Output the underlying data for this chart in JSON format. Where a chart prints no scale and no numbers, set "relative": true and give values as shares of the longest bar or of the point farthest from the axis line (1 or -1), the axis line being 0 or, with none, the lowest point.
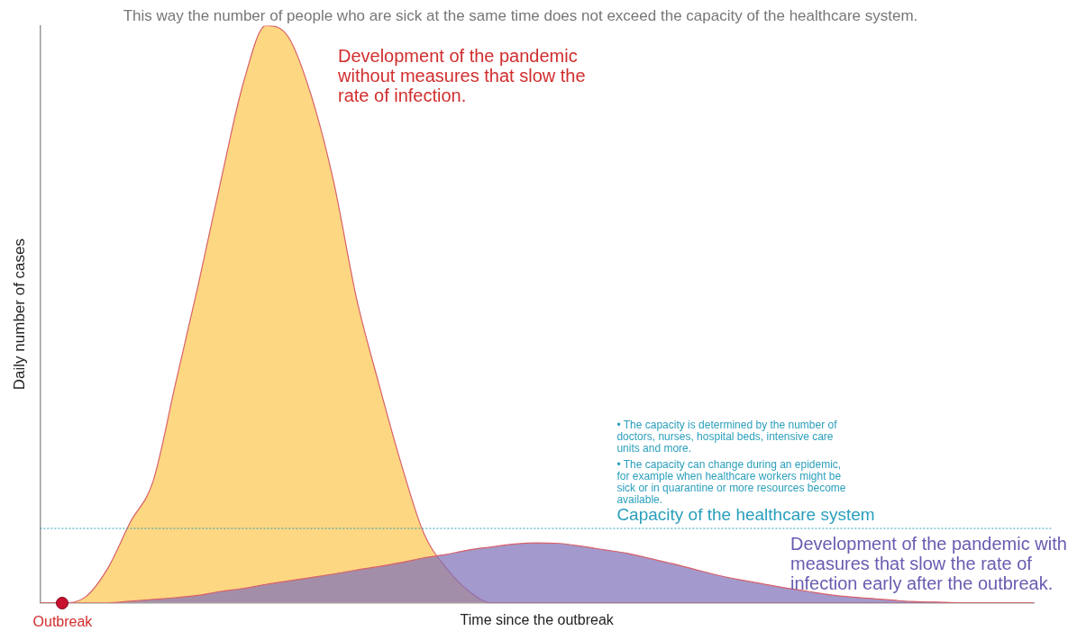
{
  "chart_data": {
    "type": "area",
    "subtitle": "This way the number of people who are sick at the same time does not exceed the capacity of the healthcare system.",
    "xlabel": "Time since the outbreak",
    "ylabel": "Daily number of cases",
    "relative": true,
    "categories": [
      null,
      null,
      null,
      null,
      null,
      null,
      null,
      null,
      null,
      null,
      null,
      null,
      null,
      null,
      null,
      null,
      null,
      null,
      null,
      null,
      null,
      null,
      null,
      null,
      null,
      null,
      null,
      null,
      null,
      null,
      null,
      null,
      null,
      null,
      null,
      null,
      null,
      null,
      null,
      null,
      null,
      null,
      null,
      null,
      null
    ],
    "series": [
      {
        "name": "Development of the pandemic without measures that slow the rate of infection.",
        "color": "#fdd47a",
        "values": [
          0,
          0,
          0.01,
          0.06,
          0.14,
          0.21,
          0.38,
          0.55,
          0.73,
          0.9,
          1,
          0.98,
          0.88,
          0.73,
          0.53,
          0.38,
          0.24,
          0.12,
          0.06,
          0.02,
          0,
          0,
          0,
          0,
          0,
          0,
          0,
          0,
          0,
          0,
          0,
          0,
          0,
          0,
          0,
          0,
          0,
          0,
          0,
          0,
          0,
          0,
          0,
          0,
          0
        ]
      },
      {
        "name": "Development of the pandemic with measures that slow the rate of infection early after the outbreak.",
        "color": "#7f72b8",
        "values": [
          0,
          0,
          0,
          0,
          0.003,
          0.006,
          0.009,
          0.013,
          0.02,
          0.025,
          0.032,
          0.038,
          0.044,
          0.05,
          0.057,
          0.063,
          0.07,
          0.078,
          0.084,
          0.092,
          0.097,
          0.102,
          0.104,
          0.103,
          0.098,
          0.092,
          0.086,
          0.077,
          0.068,
          0.058,
          0.048,
          0.04,
          0.033,
          0.026,
          0.02,
          0.014,
          0.01,
          0.007,
          0.004,
          0.002,
          0.001,
          0,
          0,
          0,
          0
        ]
      }
    ],
    "ref_lines": [
      {
        "axis": "y",
        "value": 0.129,
        "label": "Capacity of the healthcare system",
        "color": "#2a9fbc",
        "line_style": "dotted"
      }
    ],
    "annotations": [
      "• The capacity is determined by the number of doctors, nurses, hospital beds, intensive care units and more.",
      "• The capacity can change during an epidemic, for example when healthcare workers might be sick or in quarantine or more resources become available.",
      "Outbreak"
    ],
    "grid": false,
    "marker": "none"
  }
}
